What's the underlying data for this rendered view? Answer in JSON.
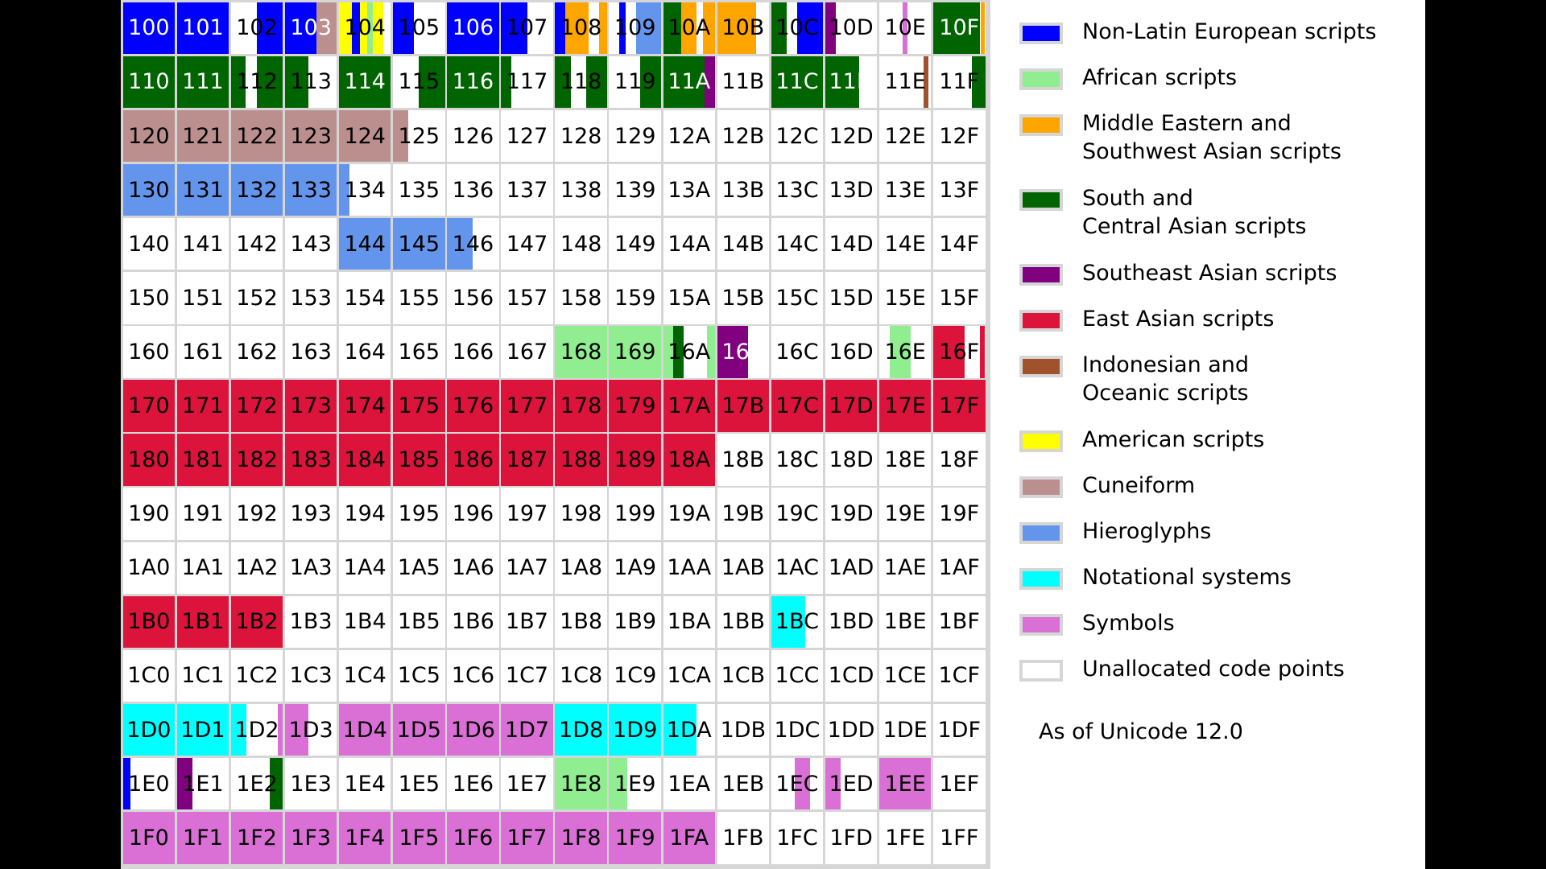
{
  "categories": {
    "eur": {
      "name": "Non-Latin European scripts",
      "color": "#0000ff"
    },
    "afr": {
      "name": "African scripts",
      "color": "#90ee90"
    },
    "mid": {
      "name": "Middle Eastern and\nSouthwest Asian scripts",
      "color": "#ffa500"
    },
    "sas": {
      "name": "South and\nCentral Asian scripts",
      "color": "#006400"
    },
    "sea": {
      "name": "Southeast Asian scripts",
      "color": "#800080"
    },
    "eas": {
      "name": "East Asian scripts",
      "color": "#dc143c"
    },
    "ind": {
      "name": "Indonesian and\nOceanic scripts",
      "color": "#a0522d"
    },
    "ame": {
      "name": "American scripts",
      "color": "#ffff00"
    },
    "cun": {
      "name": "Cuneiform",
      "color": "#bc8f8f"
    },
    "hie": {
      "name": "Hieroglyphs",
      "color": "#6495ed"
    },
    "not": {
      "name": "Notational systems",
      "color": "#00ffff"
    },
    "sym": {
      "name": "Symbols",
      "color": "#da70d6"
    },
    "un": {
      "name": "Unallocated code points",
      "color": "#ffffff"
    }
  },
  "legend_order": [
    "eur",
    "afr",
    "mid",
    "sas",
    "sea",
    "eas",
    "ind",
    "ame",
    "cun",
    "hie",
    "not",
    "sym",
    "un"
  ],
  "version_note": "As of Unicode 12.0",
  "labels": [
    [
      "100",
      "101",
      "102",
      "103",
      "104",
      "105",
      "106",
      "107",
      "108",
      "109",
      "10A",
      "10B",
      "10C",
      "10D",
      "10E",
      "10F"
    ],
    [
      "110",
      "111",
      "112",
      "113",
      "114",
      "115",
      "116",
      "117",
      "118",
      "119",
      "11A",
      "11B",
      "11C",
      "11D",
      "11E",
      "11F"
    ],
    [
      "120",
      "121",
      "122",
      "123",
      "124",
      "125",
      "126",
      "127",
      "128",
      "129",
      "12A",
      "12B",
      "12C",
      "12D",
      "12E",
      "12F"
    ],
    [
      "130",
      "131",
      "132",
      "133",
      "134",
      "135",
      "136",
      "137",
      "138",
      "139",
      "13A",
      "13B",
      "13C",
      "13D",
      "13E",
      "13F"
    ],
    [
      "140",
      "141",
      "142",
      "143",
      "144",
      "145",
      "146",
      "147",
      "148",
      "149",
      "14A",
      "14B",
      "14C",
      "14D",
      "14E",
      "14F"
    ],
    [
      "150",
      "151",
      "152",
      "153",
      "154",
      "155",
      "156",
      "157",
      "158",
      "159",
      "15A",
      "15B",
      "15C",
      "15D",
      "15E",
      "15F"
    ],
    [
      "160",
      "161",
      "162",
      "163",
      "164",
      "165",
      "166",
      "167",
      "168",
      "169",
      "16A",
      "16B",
      "16C",
      "16D",
      "16E",
      "16F"
    ],
    [
      "170",
      "171",
      "172",
      "173",
      "174",
      "175",
      "176",
      "177",
      "178",
      "179",
      "17A",
      "17B",
      "17C",
      "17D",
      "17E",
      "17F"
    ],
    [
      "180",
      "181",
      "182",
      "183",
      "184",
      "185",
      "186",
      "187",
      "188",
      "189",
      "18A",
      "18B",
      "18C",
      "18D",
      "18E",
      "18F"
    ],
    [
      "190",
      "191",
      "192",
      "193",
      "194",
      "195",
      "196",
      "197",
      "198",
      "199",
      "19A",
      "19B",
      "19C",
      "19D",
      "19E",
      "19F"
    ],
    [
      "1A0",
      "1A1",
      "1A2",
      "1A3",
      "1A4",
      "1A5",
      "1A6",
      "1A7",
      "1A8",
      "1A9",
      "1AA",
      "1AB",
      "1AC",
      "1AD",
      "1AE",
      "1AF"
    ],
    [
      "1B0",
      "1B1",
      "1B2",
      "1B3",
      "1B4",
      "1B5",
      "1B6",
      "1B7",
      "1B8",
      "1B9",
      "1BA",
      "1BB",
      "1BC",
      "1BD",
      "1BE",
      "1BF"
    ],
    [
      "1C0",
      "1C1",
      "1C2",
      "1C3",
      "1C4",
      "1C5",
      "1C6",
      "1C7",
      "1C8",
      "1C9",
      "1CA",
      "1CB",
      "1CC",
      "1CD",
      "1CE",
      "1CF"
    ],
    [
      "1D0",
      "1D1",
      "1D2",
      "1D3",
      "1D4",
      "1D5",
      "1D6",
      "1D7",
      "1D8",
      "1D9",
      "1DA",
      "1DB",
      "1DC",
      "1DD",
      "1DE",
      "1DF"
    ],
    [
      "1E0",
      "1E1",
      "1E2",
      "1E3",
      "1E4",
      "1E5",
      "1E6",
      "1E7",
      "1E8",
      "1E9",
      "1EA",
      "1EB",
      "1EC",
      "1ED",
      "1EE",
      "1EF"
    ],
    [
      "1F0",
      "1F1",
      "1F2",
      "1F3",
      "1F4",
      "1F5",
      "1F6",
      "1F7",
      "1F8",
      "1F9",
      "1FA",
      "1FB",
      "1FC",
      "1FD",
      "1FE",
      "1FF"
    ]
  ],
  "fills": {
    "100": [
      [
        "eur",
        1
      ]
    ],
    "101": [
      [
        "eur",
        1
      ]
    ],
    "102": [
      [
        "un",
        0.5
      ],
      [
        "eur",
        0.5
      ]
    ],
    "103": [
      [
        "eur",
        0.6
      ],
      [
        "cun",
        0.4
      ]
    ],
    "104": [
      [
        "ame",
        0.25
      ],
      [
        "eur",
        0.15
      ],
      [
        "ame",
        0.15
      ],
      [
        "afr",
        0.1
      ],
      [
        "ame",
        0.2
      ],
      [
        "un",
        0.15
      ]
    ],
    "105": [
      [
        "eur",
        0.4
      ],
      [
        "un",
        0.6
      ]
    ],
    "106": [
      [
        "eur",
        1
      ]
    ],
    "107": [
      [
        "eur",
        0.5
      ],
      [
        "un",
        0.5
      ]
    ],
    "108": [
      [
        "eur",
        0.2
      ],
      [
        "mid",
        0.45
      ],
      [
        "un",
        0.2
      ],
      [
        "mid",
        0.15
      ]
    ],
    "109": [
      [
        "un",
        0.2
      ],
      [
        "eur",
        0.12
      ],
      [
        "un",
        0.2
      ],
      [
        "hie",
        0.48
      ]
    ],
    "10A": [
      [
        "sas",
        0.35
      ],
      [
        "mid",
        0.3
      ],
      [
        "un",
        0.12
      ],
      [
        "mid",
        0.23
      ]
    ],
    "10B": [
      [
        "mid",
        0.75
      ],
      [
        "un",
        0.25
      ]
    ],
    "10C": [
      [
        "sas",
        0.3
      ],
      [
        "un",
        0.2
      ],
      [
        "eur",
        0.5
      ]
    ],
    "10D": [
      [
        "sea",
        0.2
      ],
      [
        "un",
        0.8
      ]
    ],
    "10E": [
      [
        "un",
        0.45
      ],
      [
        "sym",
        0.1
      ],
      [
        "un",
        0.45
      ]
    ],
    "10F": [
      [
        "sas",
        0.9
      ],
      [
        "un",
        0.02
      ],
      [
        "mid",
        0.08
      ]
    ],
    "110": [
      [
        "sas",
        1
      ]
    ],
    "111": [
      [
        "sas",
        1
      ]
    ],
    "112": [
      [
        "sas",
        0.28
      ],
      [
        "un",
        0.22
      ],
      [
        "sas",
        0.5
      ]
    ],
    "113": [
      [
        "sas",
        0.45
      ],
      [
        "un",
        0.55
      ]
    ],
    "114": [
      [
        "sas",
        1
      ]
    ],
    "115": [
      [
        "un",
        0.5
      ],
      [
        "sas",
        0.5
      ]
    ],
    "116": [
      [
        "sas",
        1
      ]
    ],
    "117": [
      [
        "sas",
        0.2
      ],
      [
        "un",
        0.8
      ]
    ],
    "118": [
      [
        "sas",
        0.3
      ],
      [
        "un",
        0.3
      ],
      [
        "sas",
        0.4
      ]
    ],
    "119": [
      [
        "un",
        0.6
      ],
      [
        "sas",
        0.4
      ]
    ],
    "11A": [
      [
        "sas",
        0.8
      ],
      [
        "sea",
        0.2
      ]
    ],
    "11B": [
      [
        "un",
        1
      ]
    ],
    "11C": [
      [
        "sas",
        1
      ]
    ],
    "11D": [
      [
        "sas",
        0.65
      ],
      [
        "un",
        0.35
      ]
    ],
    "11E": [
      [
        "un",
        0.85
      ],
      [
        "ind",
        0.1
      ],
      [
        "un",
        0.05
      ]
    ],
    "11F": [
      [
        "un",
        0.75
      ],
      [
        "sas",
        0.25
      ]
    ],
    "120": [
      [
        "cun",
        1
      ]
    ],
    "121": [
      [
        "cun",
        1
      ]
    ],
    "122": [
      [
        "cun",
        1
      ]
    ],
    "123": [
      [
        "cun",
        1
      ]
    ],
    "124": [
      [
        "cun",
        1
      ]
    ],
    "125": [
      [
        "cun",
        0.3
      ],
      [
        "un",
        0.7
      ]
    ],
    "130": [
      [
        "hie",
        1
      ]
    ],
    "131": [
      [
        "hie",
        1
      ]
    ],
    "132": [
      [
        "hie",
        1
      ]
    ],
    "133": [
      [
        "hie",
        1
      ]
    ],
    "134": [
      [
        "hie",
        0.2
      ],
      [
        "un",
        0.8
      ]
    ],
    "144": [
      [
        "hie",
        1
      ]
    ],
    "145": [
      [
        "hie",
        1
      ]
    ],
    "146": [
      [
        "hie",
        0.5
      ],
      [
        "un",
        0.5
      ]
    ],
    "168": [
      [
        "afr",
        1
      ]
    ],
    "169": [
      [
        "afr",
        1
      ]
    ],
    "16A": [
      [
        "afr",
        0.2
      ],
      [
        "sas",
        0.2
      ],
      [
        "un",
        0.45
      ],
      [
        "afr",
        0.15
      ]
    ],
    "16B": [
      [
        "sea",
        0.6
      ],
      [
        "un",
        0.4
      ]
    ],
    "16E": [
      [
        "un",
        0.2
      ],
      [
        "afr",
        0.4
      ],
      [
        "un",
        0.4
      ]
    ],
    "16F": [
      [
        "eas",
        0.6
      ],
      [
        "un",
        0.3
      ],
      [
        "eas",
        0.1
      ]
    ],
    "170": [
      [
        "eas",
        1
      ]
    ],
    "171": [
      [
        "eas",
        1
      ]
    ],
    "172": [
      [
        "eas",
        1
      ]
    ],
    "173": [
      [
        "eas",
        1
      ]
    ],
    "174": [
      [
        "eas",
        1
      ]
    ],
    "175": [
      [
        "eas",
        1
      ]
    ],
    "176": [
      [
        "eas",
        1
      ]
    ],
    "177": [
      [
        "eas",
        1
      ]
    ],
    "178": [
      [
        "eas",
        1
      ]
    ],
    "179": [
      [
        "eas",
        1
      ]
    ],
    "17A": [
      [
        "eas",
        1
      ]
    ],
    "17B": [
      [
        "eas",
        1
      ]
    ],
    "17C": [
      [
        "eas",
        1
      ]
    ],
    "17D": [
      [
        "eas",
        1
      ]
    ],
    "17E": [
      [
        "eas",
        1
      ]
    ],
    "17F": [
      [
        "eas",
        1
      ]
    ],
    "180": [
      [
        "eas",
        1
      ]
    ],
    "181": [
      [
        "eas",
        1
      ]
    ],
    "182": [
      [
        "eas",
        1
      ]
    ],
    "183": [
      [
        "eas",
        1
      ]
    ],
    "184": [
      [
        "eas",
        1
      ]
    ],
    "185": [
      [
        "eas",
        1
      ]
    ],
    "186": [
      [
        "eas",
        1
      ]
    ],
    "187": [
      [
        "eas",
        1
      ]
    ],
    "188": [
      [
        "eas",
        1
      ]
    ],
    "189": [
      [
        "eas",
        1
      ]
    ],
    "18A": [
      [
        "eas",
        1
      ]
    ],
    "1B0": [
      [
        "eas",
        1
      ]
    ],
    "1B1": [
      [
        "eas",
        1
      ]
    ],
    "1B2": [
      [
        "eas",
        1
      ]
    ],
    "1BC": [
      [
        "not",
        0.65
      ],
      [
        "un",
        0.35
      ]
    ],
    "1D0": [
      [
        "not",
        1
      ]
    ],
    "1D1": [
      [
        "not",
        1
      ]
    ],
    "1D2": [
      [
        "not",
        0.3
      ],
      [
        "un",
        0.6
      ],
      [
        "sym",
        0.1
      ]
    ],
    "1D3": [
      [
        "sym",
        0.45
      ],
      [
        "un",
        0.55
      ]
    ],
    "1D4": [
      [
        "sym",
        1
      ]
    ],
    "1D5": [
      [
        "sym",
        1
      ]
    ],
    "1D6": [
      [
        "sym",
        1
      ]
    ],
    "1D7": [
      [
        "sym",
        1
      ]
    ],
    "1D8": [
      [
        "not",
        1
      ]
    ],
    "1D9": [
      [
        "not",
        1
      ]
    ],
    "1DA": [
      [
        "not",
        0.65
      ],
      [
        "un",
        0.35
      ]
    ],
    "1E0": [
      [
        "eur",
        0.15
      ],
      [
        "un",
        0.85
      ]
    ],
    "1E1": [
      [
        "sea",
        0.3
      ],
      [
        "un",
        0.7
      ]
    ],
    "1E2": [
      [
        "un",
        0.75
      ],
      [
        "sas",
        0.25
      ]
    ],
    "1E8": [
      [
        "afr",
        1
      ]
    ],
    "1E9": [
      [
        "afr",
        0.35
      ],
      [
        "un",
        0.65
      ]
    ],
    "1EC": [
      [
        "un",
        0.45
      ],
      [
        "sym",
        0.3
      ],
      [
        "un",
        0.25
      ]
    ],
    "1ED": [
      [
        "sym",
        0.3
      ],
      [
        "un",
        0.7
      ]
    ],
    "1EE": [
      [
        "sym",
        1
      ]
    ],
    "1F0": [
      [
        "sym",
        1
      ]
    ],
    "1F1": [
      [
        "sym",
        1
      ]
    ],
    "1F2": [
      [
        "sym",
        1
      ]
    ],
    "1F3": [
      [
        "sym",
        1
      ]
    ],
    "1F4": [
      [
        "sym",
        1
      ]
    ],
    "1F5": [
      [
        "sym",
        1
      ]
    ],
    "1F6": [
      [
        "sym",
        1
      ]
    ],
    "1F7": [
      [
        "sym",
        1
      ]
    ],
    "1F8": [
      [
        "sym",
        1
      ]
    ],
    "1F9": [
      [
        "sym",
        1
      ]
    ],
    "1FA": [
      [
        "sym",
        1
      ]
    ]
  }
}
